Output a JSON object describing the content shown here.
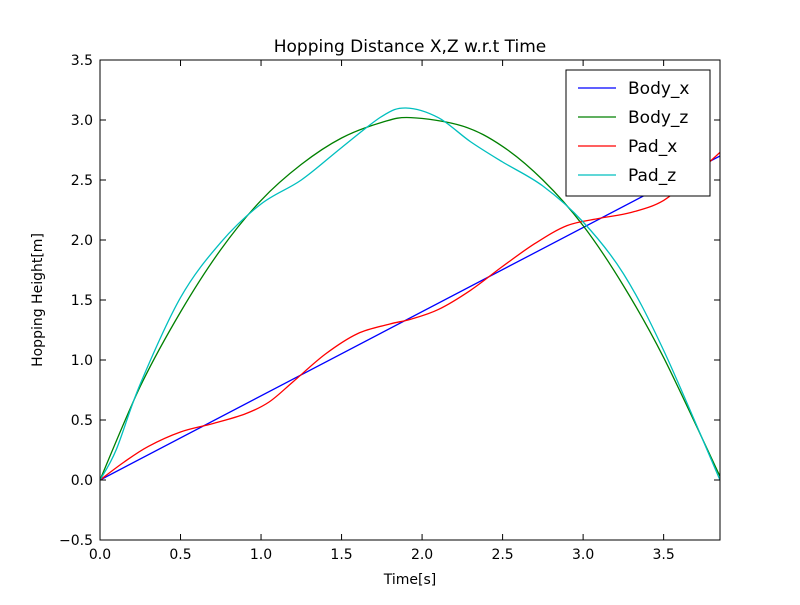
{
  "chart_data": {
    "type": "line",
    "title": "Hopping Distance X,Z w.r.t Time",
    "xlabel": "Time[s]",
    "ylabel": "Hopping Height[m]",
    "xlim": [
      0,
      3.85
    ],
    "ylim": [
      -0.5,
      3.5
    ],
    "xticks": [
      0.0,
      0.5,
      1.0,
      1.5,
      2.0,
      2.5,
      3.0,
      3.5
    ],
    "xtick_labels": [
      "0.0",
      "0.5",
      "1.0",
      "1.5",
      "2.0",
      "2.5",
      "3.0",
      "3.5"
    ],
    "yticks": [
      -0.5,
      0.0,
      0.5,
      1.0,
      1.5,
      2.0,
      2.5,
      3.0,
      3.5
    ],
    "ytick_labels": [
      "−0.5",
      "0.0",
      "0.5",
      "1.0",
      "1.5",
      "2.0",
      "2.5",
      "3.0",
      "3.5"
    ],
    "grid": false,
    "legend_position": "top-right",
    "series": [
      {
        "name": "Body_x",
        "color": "#0000ff",
        "x": [
          0.0,
          3.85
        ],
        "y": [
          0.0,
          2.7
        ]
      },
      {
        "name": "Body_z",
        "color": "#008000",
        "x": [
          0.0,
          0.25,
          0.5,
          0.75,
          1.0,
          1.25,
          1.5,
          1.75,
          1.93,
          2.25,
          2.5,
          2.75,
          3.0,
          3.25,
          3.5,
          3.85
        ],
        "y": [
          0.0,
          0.78,
          1.4,
          1.92,
          2.33,
          2.63,
          2.85,
          2.98,
          3.02,
          2.95,
          2.78,
          2.5,
          2.12,
          1.62,
          1.02,
          0.03
        ]
      },
      {
        "name": "Pad_x",
        "color": "#ff0000",
        "x": [
          0.0,
          0.15,
          0.3,
          0.5,
          0.7,
          0.9,
          1.05,
          1.2,
          1.4,
          1.6,
          1.8,
          1.93,
          2.1,
          2.3,
          2.5,
          2.7,
          2.9,
          3.1,
          3.3,
          3.5,
          3.7,
          3.85
        ],
        "y": [
          0.0,
          0.15,
          0.28,
          0.4,
          0.47,
          0.55,
          0.65,
          0.82,
          1.05,
          1.22,
          1.3,
          1.34,
          1.42,
          1.58,
          1.78,
          1.97,
          2.12,
          2.18,
          2.23,
          2.33,
          2.55,
          2.73
        ]
      },
      {
        "name": "Pad_z",
        "color": "#00bfbf",
        "x": [
          0.0,
          0.1,
          0.25,
          0.5,
          0.75,
          1.0,
          1.25,
          1.5,
          1.75,
          1.9,
          2.1,
          2.3,
          2.5,
          2.75,
          3.0,
          3.25,
          3.5,
          3.85
        ],
        "y": [
          0.0,
          0.25,
          0.8,
          1.52,
          1.98,
          2.3,
          2.5,
          2.77,
          3.03,
          3.1,
          3.02,
          2.82,
          2.65,
          2.45,
          2.15,
          1.72,
          1.08,
          0.0
        ]
      }
    ]
  }
}
